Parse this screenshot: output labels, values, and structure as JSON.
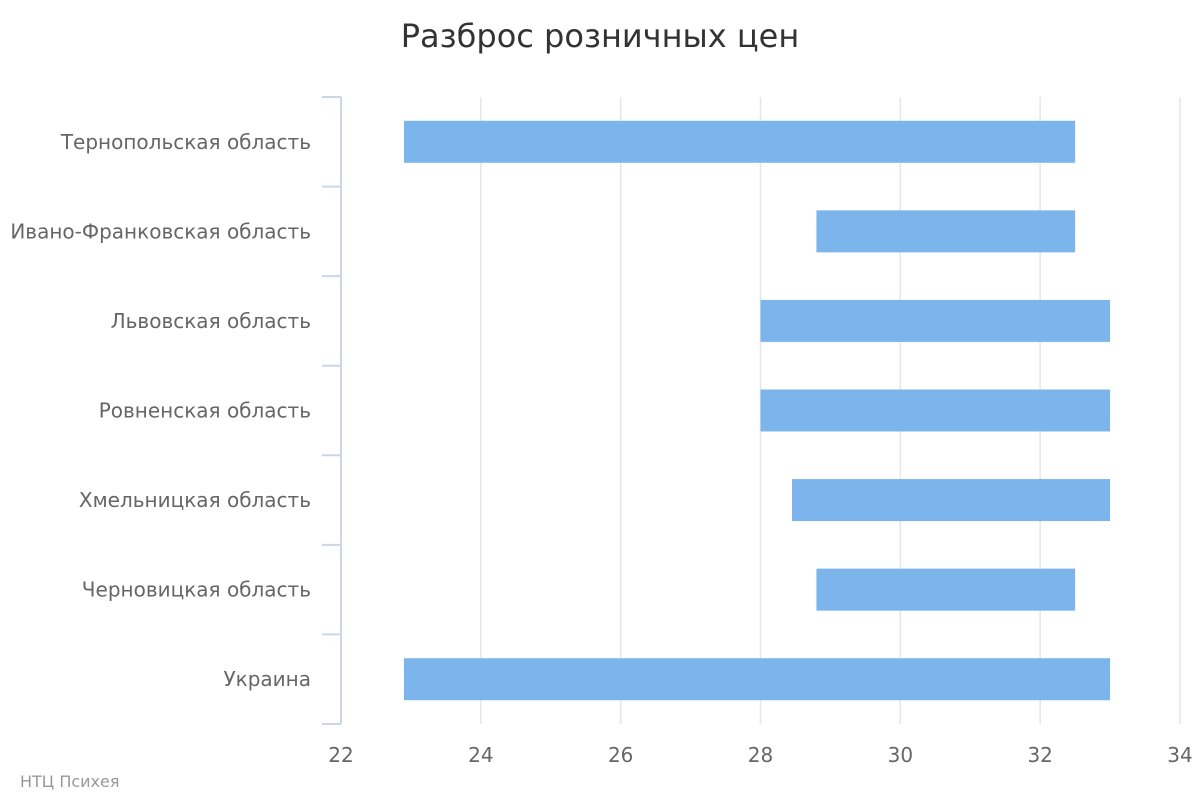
{
  "chart_data": {
    "type": "bar",
    "orientation": "horizontal",
    "title": "Разброс розничных цен",
    "categories": [
      "Тернопольская область",
      "Ивано-Франковская область",
      "Львовская область",
      "Ровненская область",
      "Хмельницкая область",
      "Черновицкая область",
      "Украина"
    ],
    "series": [
      {
        "ranges": [
          [
            22.9,
            32.5
          ],
          [
            28.8,
            32.5
          ],
          [
            28.0,
            33.0
          ],
          [
            28.0,
            33.0
          ],
          [
            28.45,
            33.0
          ],
          [
            28.8,
            32.5
          ],
          [
            22.9,
            33.0
          ]
        ]
      }
    ],
    "xlim": [
      22,
      34
    ],
    "ticks": [
      22,
      24,
      26,
      28,
      30,
      32,
      34
    ],
    "grid": true,
    "legend": "none",
    "colors": {
      "bar": "#7cb5ec",
      "grid": "#e6e6e6",
      "axis": "#ccd6eb"
    }
  },
  "credit": "НТЦ Психея"
}
